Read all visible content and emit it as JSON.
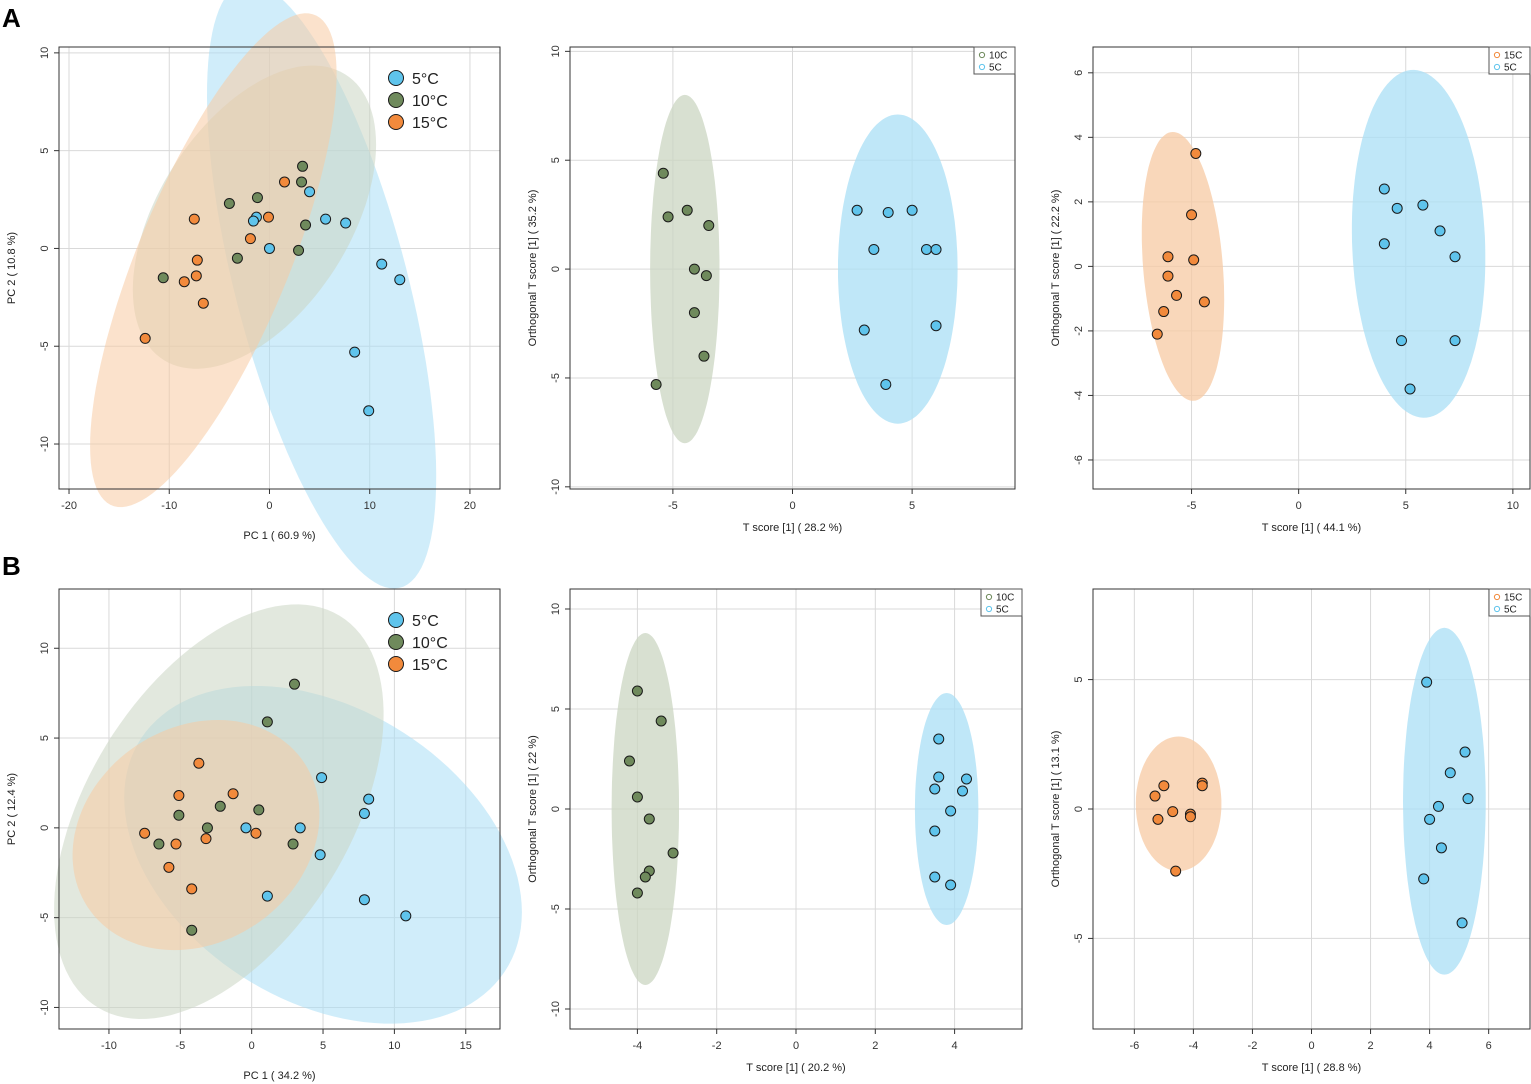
{
  "panel_labels": [
    "A",
    "B"
  ],
  "colors": {
    "c5": "#5fc4ec",
    "c10": "#6f8a5c",
    "c15": "#f28a3c",
    "e5": "#a9dff5",
    "e10": "#cbd5c2",
    "e15": "#f7caa3"
  },
  "chart_data": [
    {
      "id": "A1",
      "type": "scatter",
      "kind": "pca",
      "title": "",
      "xlabel": "PC 1 ( 60.9 %)",
      "ylabel": "PC 2 ( 10.8 %)",
      "xlim": [
        -21,
        23
      ],
      "ylim": [
        -12.3,
        10.3
      ],
      "xticks": [
        -20,
        -10,
        0,
        10,
        20
      ],
      "yticks": [
        -10,
        -5,
        0,
        5,
        10
      ],
      "grid": true,
      "legend_position": "top-right",
      "legend": [
        {
          "label": "5°C",
          "group": "5"
        },
        {
          "label": "10°C",
          "group": "10"
        },
        {
          "label": "15°C",
          "group": "15"
        }
      ],
      "ellipses": [
        {
          "group": "5",
          "cx": 5.2,
          "cy": -1.9,
          "rx": 17.6,
          "ry": 7.8,
          "angle": -58
        },
        {
          "group": "10",
          "cx": -1.5,
          "cy": 1.6,
          "rx": 12.9,
          "ry": 6.4,
          "angle": 23
        },
        {
          "group": "15",
          "cx": -5.6,
          "cy": -0.6,
          "rx": 16.5,
          "ry": 6.2,
          "angle": 46
        }
      ],
      "series": [
        {
          "name": "5°C",
          "group": "5",
          "points": [
            [
              0,
              0
            ],
            [
              4,
              2.9
            ],
            [
              5.6,
              1.5
            ],
            [
              7.6,
              1.3
            ],
            [
              11.2,
              -0.8
            ],
            [
              13,
              -1.6
            ],
            [
              8.5,
              -5.3
            ],
            [
              9.9,
              -8.3
            ],
            [
              -1.3,
              1.6
            ],
            [
              -1.6,
              1.4
            ]
          ]
        },
        {
          "name": "10°C",
          "group": "10",
          "points": [
            [
              -10.6,
              -1.5
            ],
            [
              -4,
              2.3
            ],
            [
              -1.2,
              2.6
            ],
            [
              3.3,
              4.2
            ],
            [
              3.2,
              3.4
            ],
            [
              3.6,
              1.2
            ],
            [
              2.9,
              -0.1
            ],
            [
              -3.2,
              -0.5
            ]
          ]
        },
        {
          "name": "15°C",
          "group": "15",
          "points": [
            [
              -7.5,
              1.5
            ],
            [
              -7.2,
              -0.6
            ],
            [
              -7.3,
              -1.4
            ],
            [
              -8.5,
              -1.7
            ],
            [
              -6.6,
              -2.8
            ],
            [
              -12.4,
              -4.6
            ],
            [
              -1.9,
              0.5
            ],
            [
              -0.1,
              1.6
            ],
            [
              1.5,
              3.4
            ]
          ]
        }
      ]
    },
    {
      "id": "A2",
      "type": "scatter",
      "kind": "opls",
      "title": "",
      "xlabel": "T score [1] ( 28.2 %)",
      "ylabel": "Orthogonal T score [1] ( 35.2 %)",
      "xlim": [
        -9.3,
        9.3
      ],
      "ylim": [
        -10.1,
        10.2
      ],
      "xticks": [
        -5,
        0,
        5
      ],
      "yticks": [
        -10,
        -5,
        0,
        5,
        10
      ],
      "grid": true,
      "legend_position": "top-right",
      "legend": [
        {
          "label": "10C",
          "group": "10"
        },
        {
          "label": "5C",
          "group": "5"
        }
      ],
      "ellipses": [
        {
          "group": "10",
          "cx": -4.5,
          "cy": 0,
          "rx": 1.45,
          "ry": 8,
          "angle": 0
        },
        {
          "group": "5",
          "cx": 4.4,
          "cy": 0,
          "rx": 2.5,
          "ry": 7.1,
          "angle": 0
        }
      ],
      "series": [
        {
          "name": "10C",
          "group": "10",
          "points": [
            [
              -5.4,
              4.4
            ],
            [
              -5.2,
              2.4
            ],
            [
              -4.4,
              2.7
            ],
            [
              -3.5,
              2
            ],
            [
              -4.1,
              0
            ],
            [
              -3.6,
              -0.3
            ],
            [
              -4.1,
              -2
            ],
            [
              -3.7,
              -4
            ],
            [
              -5.7,
              -5.3
            ]
          ]
        },
        {
          "name": "5C",
          "group": "5",
          "points": [
            [
              2.7,
              2.7
            ],
            [
              4,
              2.6
            ],
            [
              5,
              2.7
            ],
            [
              3.4,
              0.9
            ],
            [
              5.6,
              0.9
            ],
            [
              6,
              0.9
            ],
            [
              3,
              -2.8
            ],
            [
              6,
              -2.6
            ],
            [
              3.9,
              -5.3
            ]
          ]
        }
      ]
    },
    {
      "id": "A3",
      "type": "scatter",
      "kind": "opls",
      "title": "",
      "xlabel": "T score [1] ( 44.1 %)",
      "ylabel": "Orthogonal T score [1] ( 22.2 %)",
      "xlim": [
        -9.6,
        10.8
      ],
      "ylim": [
        -6.9,
        6.8
      ],
      "xticks": [
        -5,
        0,
        5,
        10
      ],
      "yticks": [
        -6,
        -4,
        -2,
        0,
        2,
        4,
        6
      ],
      "grid": true,
      "legend_position": "top-right",
      "legend": [
        {
          "label": "15C",
          "group": "15"
        },
        {
          "label": "5C",
          "group": "5"
        }
      ],
      "ellipses": [
        {
          "group": "15",
          "cx": -5.4,
          "cy": 0,
          "rx": 1.85,
          "ry": 4.2,
          "angle": 8
        },
        {
          "group": "5",
          "cx": 5.6,
          "cy": 0.7,
          "rx": 3.1,
          "ry": 5.4,
          "angle": 4
        }
      ],
      "series": [
        {
          "name": "15C",
          "group": "15",
          "points": [
            [
              -4.8,
              3.5
            ],
            [
              -5,
              1.6
            ],
            [
              -4.9,
              0.2
            ],
            [
              -6.1,
              0.3
            ],
            [
              -6.1,
              -0.3
            ],
            [
              -5.7,
              -0.9
            ],
            [
              -4.4,
              -1.1
            ],
            [
              -6.3,
              -1.4
            ],
            [
              -6.6,
              -2.1
            ]
          ]
        },
        {
          "name": "5C",
          "group": "5",
          "points": [
            [
              4,
              2.4
            ],
            [
              4.6,
              1.8
            ],
            [
              5.8,
              1.9
            ],
            [
              4,
              0.7
            ],
            [
              6.6,
              1.1
            ],
            [
              7.3,
              0.3
            ],
            [
              4.8,
              -2.3
            ],
            [
              7.3,
              -2.3
            ],
            [
              5.2,
              -3.8
            ]
          ]
        }
      ]
    },
    {
      "id": "B1",
      "type": "scatter",
      "kind": "pca",
      "title": "",
      "xlabel": "PC 1 ( 34.2 %)",
      "ylabel": "PC 2 ( 12.4 %)",
      "xlim": [
        -13.5,
        17.4
      ],
      "ylim": [
        -11.2,
        13.3
      ],
      "xticks": [
        -10,
        -5,
        0,
        5,
        10,
        15
      ],
      "yticks": [
        -10,
        -5,
        0,
        5,
        10
      ],
      "grid": true,
      "legend_position": "top-right",
      "legend": [
        {
          "label": "5°C",
          "group": "5"
        },
        {
          "label": "10°C",
          "group": "10"
        },
        {
          "label": "15°C",
          "group": "15"
        }
      ],
      "ellipses": [
        {
          "group": "5",
          "cx": 5,
          "cy": -1.5,
          "rx": 14.5,
          "ry": 8.5,
          "angle": -20
        },
        {
          "group": "10",
          "cx": -2.3,
          "cy": 0.9,
          "rx": 14,
          "ry": 8.4,
          "angle": 45
        },
        {
          "group": "15",
          "cx": -3.9,
          "cy": -0.4,
          "rx": 8.8,
          "ry": 6.2,
          "angle": 15
        }
      ],
      "series": [
        {
          "name": "5°C",
          "group": "5",
          "points": [
            [
              -0.4,
              0
            ],
            [
              3.4,
              0
            ],
            [
              4.9,
              2.8
            ],
            [
              8.2,
              1.6
            ],
            [
              7.9,
              0.8
            ],
            [
              4.8,
              -1.5
            ],
            [
              1.1,
              -3.8
            ],
            [
              7.9,
              -4
            ],
            [
              10.8,
              -4.9
            ]
          ]
        },
        {
          "name": "10°C",
          "group": "10",
          "points": [
            [
              3,
              8
            ],
            [
              1.1,
              5.9
            ],
            [
              -2.2,
              1.2
            ],
            [
              -5.1,
              0.7
            ],
            [
              -3.1,
              0
            ],
            [
              0.5,
              1
            ],
            [
              -6.5,
              -0.9
            ],
            [
              2.9,
              -0.9
            ],
            [
              -4.2,
              -5.7
            ]
          ]
        },
        {
          "name": "15°C",
          "group": "15",
          "points": [
            [
              -3.7,
              3.6
            ],
            [
              -5.1,
              1.8
            ],
            [
              -1.3,
              1.9
            ],
            [
              -7.5,
              -0.3
            ],
            [
              -5.3,
              -0.9
            ],
            [
              -3.2,
              -0.6
            ],
            [
              0.3,
              -0.3
            ],
            [
              -5.8,
              -2.2
            ],
            [
              -4.2,
              -3.4
            ]
          ]
        }
      ]
    },
    {
      "id": "B2",
      "type": "scatter",
      "kind": "opls",
      "title": "",
      "xlabel": "T score [1] ( 20.2 %)",
      "ylabel": "Orthogonal T score [1] ( 22 %)",
      "xlim": [
        -5.7,
        5.7
      ],
      "ylim": [
        -11,
        11
      ],
      "xticks": [
        -4,
        -2,
        0,
        2,
        4
      ],
      "yticks": [
        -10,
        -5,
        0,
        5,
        10
      ],
      "grid": true,
      "legend_position": "top-right",
      "legend": [
        {
          "label": "10C",
          "group": "10"
        },
        {
          "label": "5C",
          "group": "5"
        }
      ],
      "ellipses": [
        {
          "group": "10",
          "cx": -3.8,
          "cy": 0,
          "rx": 0.85,
          "ry": 8.8,
          "angle": 0
        },
        {
          "group": "5",
          "cx": 3.8,
          "cy": 0,
          "rx": 0.8,
          "ry": 5.8,
          "angle": 0
        }
      ],
      "series": [
        {
          "name": "10C",
          "group": "10",
          "points": [
            [
              -4,
              5.9
            ],
            [
              -3.4,
              4.4
            ],
            [
              -4.2,
              2.4
            ],
            [
              -4,
              0.6
            ],
            [
              -3.7,
              -0.5
            ],
            [
              -3.1,
              -2.2
            ],
            [
              -3.7,
              -3.1
            ],
            [
              -3.8,
              -3.4
            ],
            [
              -4,
              -4.2
            ]
          ]
        },
        {
          "name": "5C",
          "group": "5",
          "points": [
            [
              3.6,
              3.5
            ],
            [
              3.6,
              1.6
            ],
            [
              4.3,
              1.5
            ],
            [
              3.5,
              1
            ],
            [
              4.2,
              0.9
            ],
            [
              3.9,
              -0.1
            ],
            [
              3.5,
              -1.1
            ],
            [
              3.5,
              -3.4
            ],
            [
              3.9,
              -3.8
            ]
          ]
        }
      ]
    },
    {
      "id": "B3",
      "type": "scatter",
      "kind": "opls",
      "title": "",
      "xlabel": "T score [1] ( 28.8 %)",
      "ylabel": "Orthogonal T score [1] ( 13.1 %)",
      "xlim": [
        -7.4,
        7.4
      ],
      "ylim": [
        -8.5,
        8.5
      ],
      "xticks": [
        -6,
        -4,
        -2,
        0,
        2,
        4,
        6
      ],
      "yticks": [
        -5,
        0,
        5
      ],
      "grid": true,
      "legend_position": "top-right",
      "legend": [
        {
          "label": "15C",
          "group": "15"
        },
        {
          "label": "5C",
          "group": "5"
        }
      ],
      "ellipses": [
        {
          "group": "15",
          "cx": -4.5,
          "cy": 0.2,
          "rx": 1.45,
          "ry": 2.6,
          "angle": 0
        },
        {
          "group": "5",
          "cx": 4.5,
          "cy": 0.3,
          "rx": 1.4,
          "ry": 6.7,
          "angle": 0
        }
      ],
      "series": [
        {
          "name": "15C",
          "group": "15",
          "points": [
            [
              -5.3,
              0.5
            ],
            [
              -5,
              0.9
            ],
            [
              -3.7,
              1
            ],
            [
              -3.7,
              0.9
            ],
            [
              -4.7,
              -0.1
            ],
            [
              -4.1,
              -0.2
            ],
            [
              -4.1,
              -0.3
            ],
            [
              -5.2,
              -0.4
            ],
            [
              -4.6,
              -2.4
            ]
          ]
        },
        {
          "name": "5C",
          "group": "5",
          "points": [
            [
              3.9,
              4.9
            ],
            [
              5.2,
              2.2
            ],
            [
              4.7,
              1.4
            ],
            [
              5.3,
              0.4
            ],
            [
              4.3,
              0.1
            ],
            [
              4,
              -0.4
            ],
            [
              4.4,
              -1.5
            ],
            [
              3.8,
              -2.7
            ],
            [
              5.1,
              -4.4
            ]
          ]
        }
      ]
    }
  ]
}
